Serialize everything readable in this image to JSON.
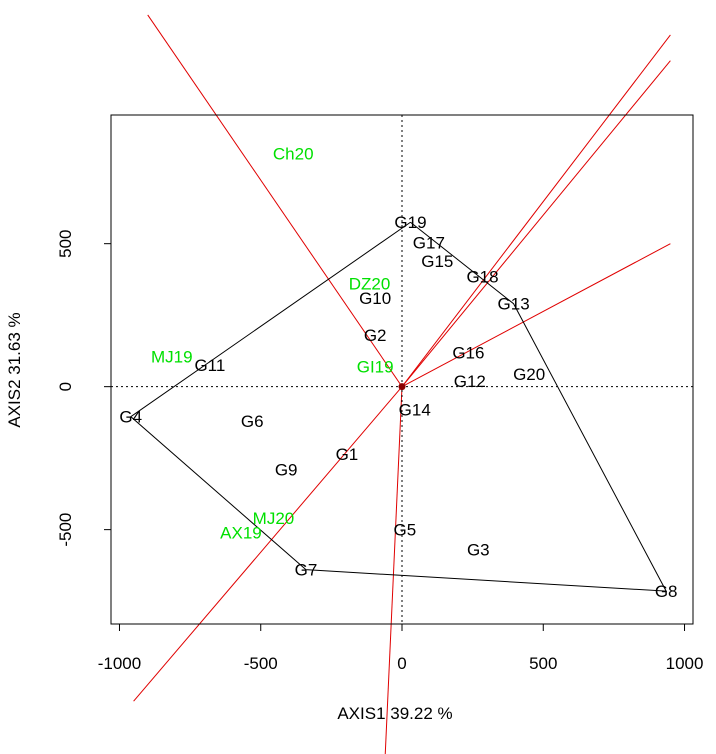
{
  "chart_data": {
    "type": "scatter",
    "title": "",
    "xlabel": "AXIS1 39.22 %",
    "ylabel": "AXIS2 31.63 %",
    "xlim": [
      -1030,
      1030
    ],
    "ylim": [
      -830,
      950
    ],
    "xticks": [
      {
        "value": -1000,
        "label": "-1000"
      },
      {
        "value": -500,
        "label": "-500"
      },
      {
        "value": 0,
        "label": "0"
      },
      {
        "value": 500,
        "label": "500"
      },
      {
        "value": 1000,
        "label": "1000"
      }
    ],
    "yticks": [
      {
        "value": -500,
        "label": "-500"
      },
      {
        "value": 0,
        "label": "0"
      },
      {
        "value": 500,
        "label": "500"
      }
    ],
    "grid": false,
    "reference_lines": {
      "x": 0,
      "y": 0,
      "style": "dotted"
    },
    "colors": {
      "genotypes": "#000000",
      "environments": "#00e000",
      "polygon": "#000000",
      "rays": "#e00000",
      "origin": "#8b0000"
    },
    "genotypes": [
      {
        "label": "G1",
        "x": -195,
        "y": -235
      },
      {
        "label": "G2",
        "x": -95,
        "y": 180
      },
      {
        "label": "G3",
        "x": 270,
        "y": -570
      },
      {
        "label": "G4",
        "x": -960,
        "y": -105
      },
      {
        "label": "G5",
        "x": 10,
        "y": -500
      },
      {
        "label": "G6",
        "x": -530,
        "y": -120
      },
      {
        "label": "G7",
        "x": -340,
        "y": -640
      },
      {
        "label": "G8",
        "x": 935,
        "y": -715
      },
      {
        "label": "G9",
        "x": -410,
        "y": -290
      },
      {
        "label": "G10",
        "x": -95,
        "y": 310
      },
      {
        "label": "G11",
        "x": -680,
        "y": 75
      },
      {
        "label": "G12",
        "x": 240,
        "y": 20
      },
      {
        "label": "G13",
        "x": 395,
        "y": 290
      },
      {
        "label": "G14",
        "x": 45,
        "y": -80
      },
      {
        "label": "G15",
        "x": 125,
        "y": 440
      },
      {
        "label": "G16",
        "x": 235,
        "y": 120
      },
      {
        "label": "G17",
        "x": 95,
        "y": 505
      },
      {
        "label": "G18",
        "x": 285,
        "y": 385
      },
      {
        "label": "G19",
        "x": 30,
        "y": 575
      },
      {
        "label": "G20",
        "x": 450,
        "y": 45
      }
    ],
    "environments": [
      {
        "label": "Ch20",
        "x": -385,
        "y": 815
      },
      {
        "label": "DZ20",
        "x": -115,
        "y": 360
      },
      {
        "label": "MJ19",
        "x": -815,
        "y": 105
      },
      {
        "label": "GI19",
        "x": -95,
        "y": 70
      },
      {
        "label": "MJ20",
        "x": -455,
        "y": -460
      },
      {
        "label": "AX19",
        "x": -570,
        "y": -510
      }
    ],
    "hull_order": [
      "G19",
      "G13",
      "G8",
      "G7",
      "G4",
      "G19"
    ],
    "rays": [
      {
        "x": -900,
        "y": 1300
      },
      {
        "x": 950,
        "y": 500
      },
      {
        "x": 950,
        "y": 1140
      },
      {
        "x": 950,
        "y": 1230
      },
      {
        "x": -950,
        "y": -1100
      },
      {
        "x": -60,
        "y": -1300
      }
    ]
  }
}
